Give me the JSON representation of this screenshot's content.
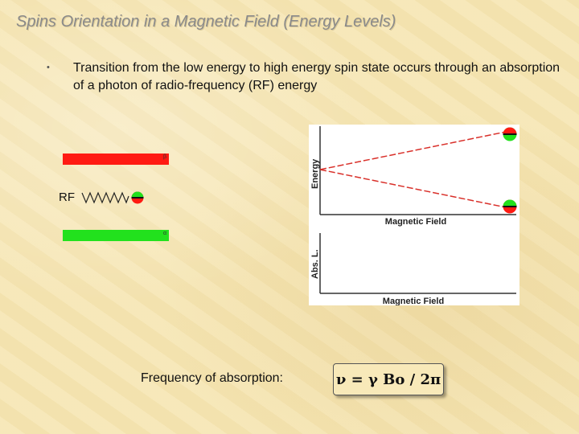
{
  "slide": {
    "title": "Spins Orientation in a Magnetic Field (Energy Levels)",
    "bullet": "Transition from the low energy to high energy spin state occurs through an absorption of a photon of radio-frequency (RF) energy"
  },
  "levels": {
    "high_tag": "β",
    "low_tag": "α",
    "rf_label": "RF"
  },
  "plot": {
    "energy_axis_label": "Energy",
    "energy_x_label": "Magnetic Field",
    "abs_axis_label": "Abs. L.",
    "abs_x_label": "Magnetic Field"
  },
  "footer": {
    "frequency_label": "Frequency of absorption:",
    "formula": "ν = γ Bo / 2π"
  },
  "colors": {
    "high_level": "#ff1a12",
    "low_level": "#22e11d",
    "split_lines": "#d9302a"
  }
}
